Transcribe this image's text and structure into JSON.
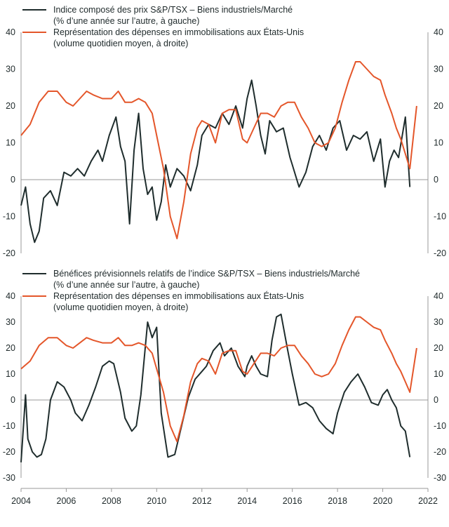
{
  "colors": {
    "black": "#1f2d2d",
    "orange": "#e4562a",
    "axis": "#999999"
  },
  "x_tick_labels": [
    "2004",
    "2006",
    "2008",
    "2010",
    "2012",
    "2014",
    "2016",
    "2018",
    "2020",
    "2022"
  ],
  "chart_data": [
    {
      "type": "line",
      "ylim_left": [
        -20,
        40
      ],
      "ylim_right": [
        -20,
        40
      ],
      "xlim": [
        2004,
        2022
      ],
      "yticks_left": [
        "40",
        "30",
        "20",
        "10",
        "0",
        "-10",
        "-20"
      ],
      "yticks_right": [
        "40",
        "30",
        "20",
        "10",
        "0",
        "-10",
        "-20"
      ],
      "legend": [
        "Indice composé des prix S&P/TSX – Biens industriels/Marché\n(% d’une année sur l’autre, à gauche)",
        "Représentation des dépenses en immobilisations aux États-Unis\n(volume quotidien moyen, à droite)"
      ],
      "series": [
        {
          "axis": "left",
          "x": [
            2004.0,
            2004.2,
            2004.4,
            2004.6,
            2004.8,
            2005.0,
            2005.3,
            2005.6,
            2005.9,
            2006.2,
            2006.5,
            2006.8,
            2007.1,
            2007.4,
            2007.6,
            2007.9,
            2008.2,
            2008.4,
            2008.6,
            2008.8,
            2009.0,
            2009.2,
            2009.4,
            2009.6,
            2009.8,
            2010.0,
            2010.2,
            2010.4,
            2010.6,
            2010.9,
            2011.2,
            2011.5,
            2011.8,
            2012.0,
            2012.3,
            2012.6,
            2012.9,
            2013.2,
            2013.5,
            2013.8,
            2014.0,
            2014.2,
            2014.4,
            2014.6,
            2014.8,
            2015.0,
            2015.3,
            2015.6,
            2015.9,
            2016.0,
            2016.3,
            2016.6,
            2016.9,
            2017.2,
            2017.5,
            2017.8,
            2018.1,
            2018.4,
            2018.7,
            2019.0,
            2019.3,
            2019.6,
            2019.9,
            2020.1,
            2020.3,
            2020.5,
            2020.7,
            2021.0,
            2021.2
          ],
          "y": [
            -7,
            -2,
            -12,
            -17,
            -14,
            -5,
            -3,
            -7,
            2,
            1,
            3,
            1,
            5,
            8,
            5,
            12,
            17,
            9,
            5,
            -12,
            8,
            18,
            3,
            -4,
            -2,
            -11,
            -6,
            4,
            -2,
            3,
            1,
            -3,
            4,
            12,
            15,
            14,
            18,
            15,
            20,
            14,
            22,
            27,
            20,
            12,
            7,
            16,
            13,
            14,
            6,
            4,
            -2,
            2,
            9,
            12,
            8,
            14,
            16,
            8,
            12,
            11,
            13,
            5,
            11,
            -2,
            5,
            8,
            6,
            17,
            -2
          ]
        },
        {
          "axis": "right",
          "x": [
            2004.0,
            2004.4,
            2004.8,
            2005.2,
            2005.6,
            2006.0,
            2006.3,
            2006.6,
            2006.9,
            2007.2,
            2007.6,
            2008.0,
            2008.3,
            2008.6,
            2008.9,
            2009.2,
            2009.5,
            2009.8,
            2010.0,
            2010.3,
            2010.6,
            2010.9,
            2011.2,
            2011.5,
            2011.8,
            2012.0,
            2012.3,
            2012.6,
            2012.9,
            2013.2,
            2013.5,
            2013.8,
            2014.0,
            2014.3,
            2014.6,
            2014.9,
            2015.2,
            2015.5,
            2015.8,
            2016.1,
            2016.4,
            2016.7,
            2017.0,
            2017.3,
            2017.6,
            2017.9,
            2018.2,
            2018.5,
            2018.8,
            2019.0,
            2019.3,
            2019.6,
            2019.9,
            2020.1,
            2020.4,
            2020.6,
            2020.8,
            2021.0,
            2021.2,
            2021.5
          ],
          "y": [
            12,
            15,
            21,
            24,
            24,
            21,
            20,
            22,
            24,
            23,
            22,
            22,
            24,
            21,
            21,
            22,
            21,
            18,
            12,
            3,
            -10,
            -16,
            -6,
            7,
            14,
            16,
            15,
            10,
            18,
            19,
            19,
            11,
            10,
            14,
            18,
            18,
            17,
            20,
            21,
            21,
            17,
            14,
            10,
            9,
            10,
            14,
            21,
            27,
            32,
            32,
            30,
            28,
            27,
            23,
            18,
            14,
            11,
            7,
            3,
            20
          ]
        }
      ]
    },
    {
      "type": "line",
      "ylim_left": [
        -30,
        40
      ],
      "ylim_right": [
        -30,
        40
      ],
      "xlim": [
        2004,
        2022
      ],
      "yticks_left": [
        "40",
        "30",
        "20",
        "10",
        "0",
        "-10",
        "-20",
        "-30"
      ],
      "yticks_right": [
        "40",
        "30",
        "20",
        "10",
        "0",
        "-10",
        "-20",
        "-30"
      ],
      "legend": [
        "Bénéfices prévisionnels relatifs de l’indice S&P/TSX – Biens industriels/Marché\n(% d’une année sur l’autre, à gauche)",
        "Représentation des dépenses en immobilisations aux États-Unis\n(volume quotidien moyen, à droite)"
      ],
      "series": [
        {
          "axis": "left",
          "x": [
            2004.0,
            2004.2,
            2004.3,
            2004.5,
            2004.7,
            2004.9,
            2005.1,
            2005.3,
            2005.6,
            2005.9,
            2006.2,
            2006.4,
            2006.7,
            2007.0,
            2007.3,
            2007.6,
            2007.9,
            2008.1,
            2008.4,
            2008.6,
            2008.9,
            2009.1,
            2009.3,
            2009.6,
            2009.8,
            2010.0,
            2010.2,
            2010.5,
            2010.8,
            2011.1,
            2011.4,
            2011.7,
            2012.0,
            2012.2,
            2012.5,
            2012.8,
            2013.0,
            2013.3,
            2013.6,
            2013.9,
            2014.0,
            2014.2,
            2014.4,
            2014.6,
            2014.9,
            2015.1,
            2015.3,
            2015.5,
            2015.8,
            2016.0,
            2016.3,
            2016.6,
            2016.9,
            2017.2,
            2017.5,
            2017.8,
            2018.0,
            2018.3,
            2018.6,
            2018.9,
            2019.2,
            2019.5,
            2019.8,
            2020.0,
            2020.2,
            2020.4,
            2020.6,
            2020.8,
            2021.0,
            2021.2
          ],
          "y": [
            -24,
            2,
            -15,
            -20,
            -22,
            -21,
            -15,
            0,
            7,
            5,
            0,
            -5,
            -8,
            -2,
            5,
            13,
            15,
            14,
            3,
            -7,
            -12,
            -10,
            2,
            30,
            24,
            28,
            -5,
            -22,
            -21,
            -10,
            1,
            8,
            11,
            13,
            19,
            22,
            17,
            20,
            13,
            9,
            13,
            17,
            13,
            10,
            9,
            23,
            32,
            33,
            19,
            10,
            -2,
            -1,
            -3,
            -8,
            -11,
            -13,
            -5,
            3,
            7,
            10,
            5,
            -1,
            -2,
            2,
            4,
            0,
            -3,
            -10,
            -12,
            -22
          ]
        },
        {
          "axis": "right",
          "x": [
            2004.0,
            2004.4,
            2004.8,
            2005.2,
            2005.6,
            2006.0,
            2006.3,
            2006.6,
            2006.9,
            2007.2,
            2007.6,
            2008.0,
            2008.3,
            2008.6,
            2008.9,
            2009.2,
            2009.5,
            2009.8,
            2010.0,
            2010.3,
            2010.6,
            2010.9,
            2011.2,
            2011.5,
            2011.8,
            2012.0,
            2012.3,
            2012.6,
            2012.9,
            2013.2,
            2013.5,
            2013.8,
            2014.0,
            2014.3,
            2014.6,
            2014.9,
            2015.2,
            2015.5,
            2015.8,
            2016.1,
            2016.4,
            2016.7,
            2017.0,
            2017.3,
            2017.6,
            2017.9,
            2018.2,
            2018.5,
            2018.8,
            2019.0,
            2019.3,
            2019.6,
            2019.9,
            2020.1,
            2020.4,
            2020.6,
            2020.8,
            2021.0,
            2021.2,
            2021.5
          ],
          "y": [
            12,
            15,
            21,
            24,
            24,
            21,
            20,
            22,
            24,
            23,
            22,
            22,
            24,
            21,
            21,
            22,
            21,
            18,
            12,
            3,
            -10,
            -16,
            -6,
            7,
            14,
            16,
            15,
            10,
            18,
            19,
            19,
            11,
            10,
            14,
            18,
            18,
            17,
            20,
            21,
            21,
            17,
            14,
            10,
            9,
            10,
            14,
            21,
            27,
            32,
            32,
            30,
            28,
            27,
            23,
            18,
            14,
            11,
            7,
            3,
            20
          ]
        }
      ]
    }
  ]
}
